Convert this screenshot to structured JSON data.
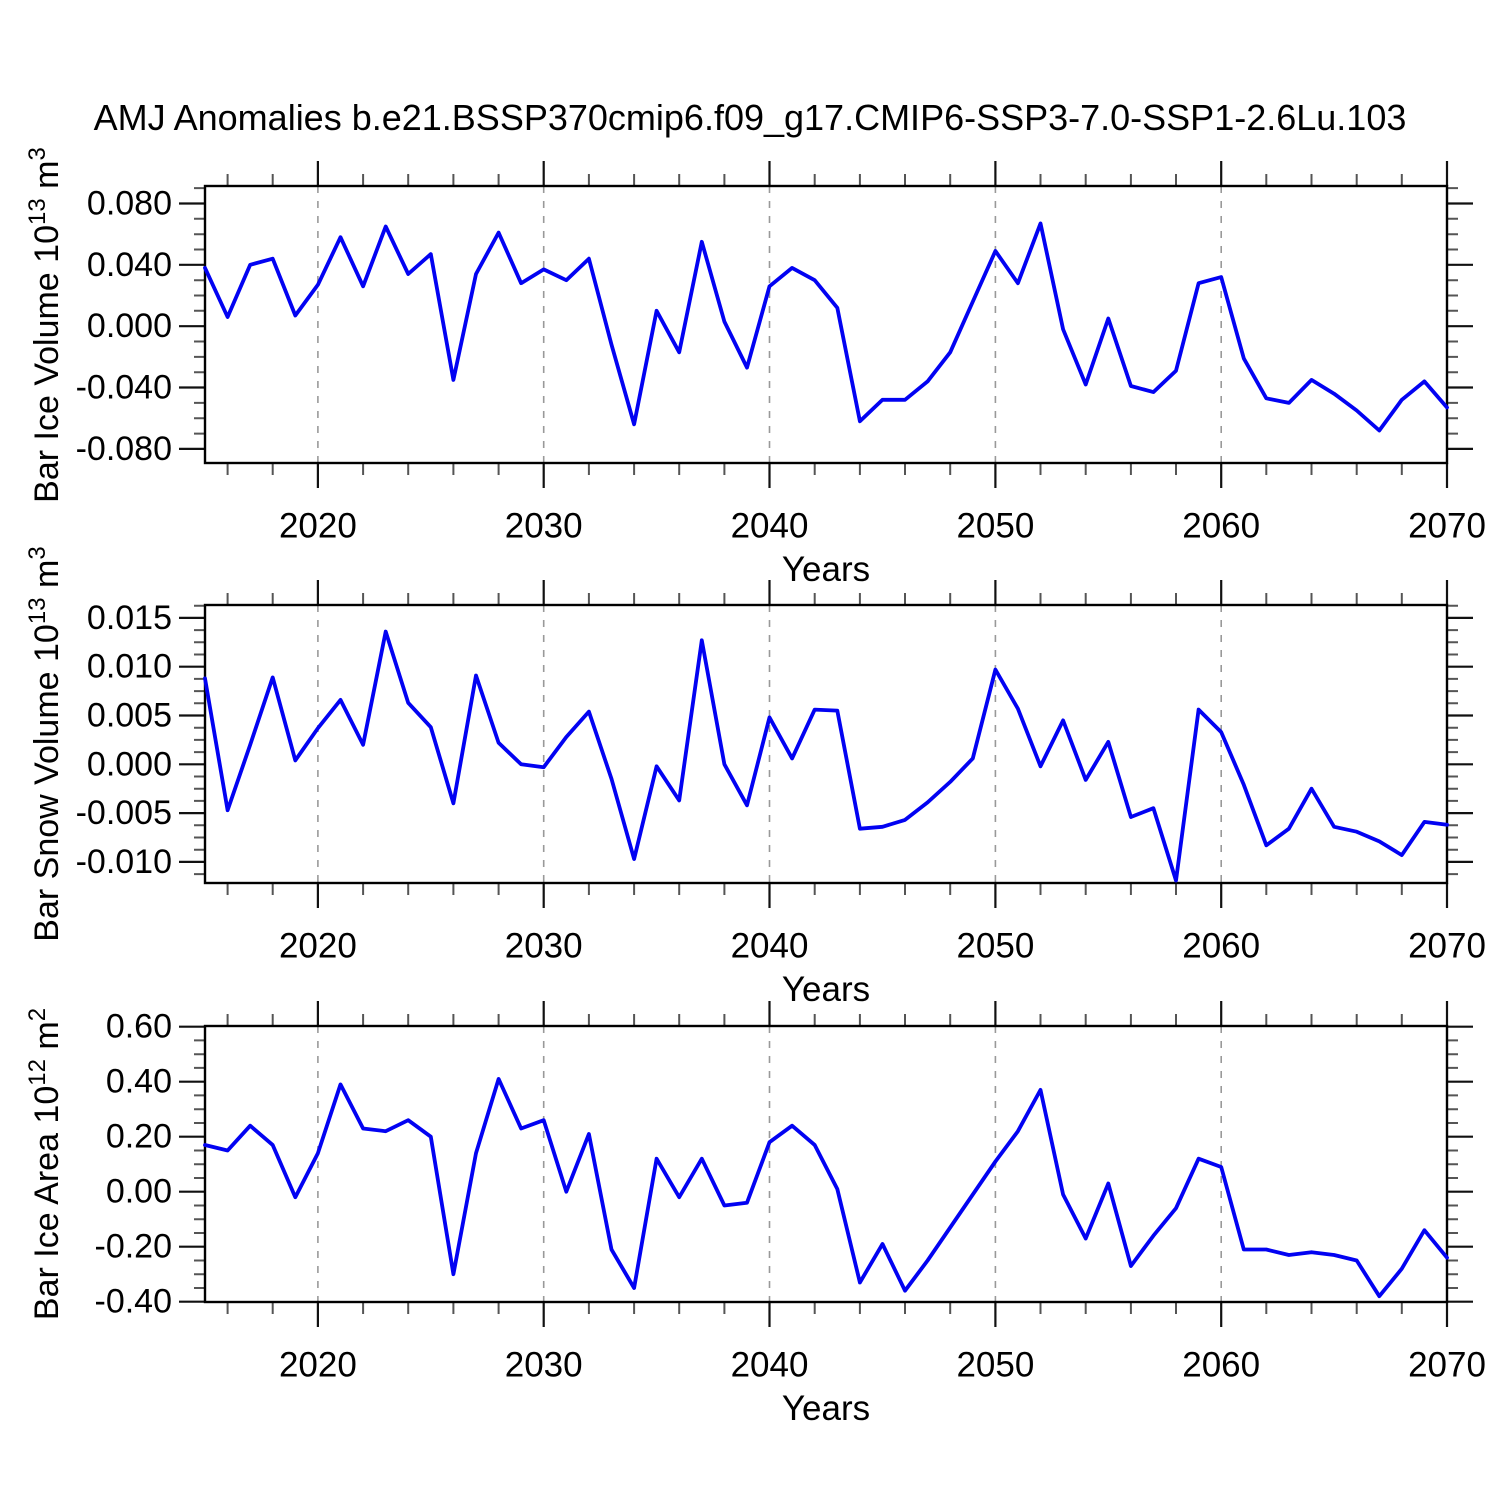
{
  "title": "AMJ Anomalies b.e21.BSSP370cmip6.f09_g17.CMIP6-SSP3-7.0-SSP1-2.6Lu.103",
  "style": {
    "line_color": "#0202f2",
    "axis_color": "#000000",
    "major_tick_color": "#111111",
    "minor_tick_color": "#555555",
    "grid_color": "#999999",
    "text_color": "#000000",
    "background": "#ffffff"
  },
  "x_axis": {
    "label": "Years",
    "start": 2015,
    "end": 2070,
    "major_ticks": [
      2020,
      2030,
      2040,
      2050,
      2060,
      2070
    ],
    "tick_labels": [
      "2020",
      "2030",
      "2040",
      "2050",
      "2060",
      "2070"
    ],
    "minor_step": 2,
    "grid_years": [
      2020,
      2030,
      2040,
      2050,
      2060
    ]
  },
  "chart_data": [
    {
      "type": "line",
      "id": "ice-volume",
      "xlabel": "Years",
      "ylabel": [
        {
          "t": "Bar Ice Volume 10"
        },
        {
          "t": "13",
          "sup": true
        },
        {
          "t": " m"
        },
        {
          "t": "3",
          "sup": true
        }
      ],
      "ylim": [
        -0.0892,
        0.0914
      ],
      "ytick_values": [
        0.08,
        0.04,
        0.0,
        -0.04,
        -0.08
      ],
      "ytick_labels": [
        "0.080",
        "0.040",
        "0.000",
        "-0.040",
        "-0.080"
      ],
      "yminor_step": 0.01,
      "x_years_start": 2015,
      "values": [
        0.038,
        0.006,
        0.04,
        0.044,
        0.007,
        0.027,
        0.058,
        0.026,
        0.065,
        0.034,
        0.047,
        -0.035,
        0.034,
        0.061,
        0.028,
        0.037,
        0.03,
        0.044,
        -0.012,
        -0.064,
        0.01,
        -0.017,
        0.055,
        0.003,
        -0.027,
        0.026,
        0.038,
        0.03,
        0.012,
        -0.062,
        -0.048,
        -0.048,
        -0.036,
        -0.017,
        0.016,
        0.049,
        0.028,
        0.067,
        -0.002,
        -0.038,
        0.005,
        -0.039,
        -0.043,
        -0.029,
        0.028,
        0.032,
        -0.021,
        -0.047,
        -0.05,
        -0.035,
        -0.044,
        -0.055,
        -0.068,
        -0.048,
        -0.036,
        -0.053
      ]
    },
    {
      "type": "line",
      "id": "snow-volume",
      "xlabel": "Years",
      "ylabel": [
        {
          "t": "Bar Snow Volume 10"
        },
        {
          "t": "13",
          "sup": true
        },
        {
          "t": " m"
        },
        {
          "t": "3",
          "sup": true
        }
      ],
      "ylim": [
        -0.01216,
        0.01632
      ],
      "ytick_values": [
        0.015,
        0.01,
        0.005,
        0.0,
        -0.005,
        -0.01
      ],
      "ytick_labels": [
        "0.015",
        "0.010",
        "0.005",
        "0.000",
        "-0.005",
        "-0.010"
      ],
      "yminor_step": 0.00125,
      "x_years_start": 2015,
      "values": [
        0.0088,
        -0.0047,
        0.002,
        0.0089,
        0.0004,
        0.0037,
        0.0066,
        0.002,
        0.0136,
        0.0063,
        0.0038,
        -0.004,
        0.0091,
        0.0022,
        0.0,
        -0.0003,
        0.0028,
        0.0054,
        -0.0015,
        -0.0097,
        -0.0002,
        -0.0037,
        0.0127,
        0.0,
        -0.0042,
        0.0048,
        0.0006,
        0.0056,
        0.0055,
        -0.0066,
        -0.0064,
        -0.0057,
        -0.0039,
        -0.0018,
        0.0006,
        0.0097,
        0.0057,
        -0.0002,
        0.0045,
        -0.0016,
        0.0023,
        -0.0054,
        -0.0045,
        -0.0119,
        0.0056,
        0.0033,
        -0.0021,
        -0.0083,
        -0.0066,
        -0.0025,
        -0.0064,
        -0.0069,
        -0.0079,
        -0.0093,
        -0.0059,
        -0.0062
      ]
    },
    {
      "type": "line",
      "id": "ice-area",
      "xlabel": "Years",
      "ylabel": [
        {
          "t": "Bar Ice Area 10"
        },
        {
          "t": "12",
          "sup": true
        },
        {
          "t": " m"
        },
        {
          "t": "2",
          "sup": true
        }
      ],
      "ylim": [
        -0.401,
        0.6025
      ],
      "ytick_values": [
        0.6,
        0.4,
        0.2,
        0.0,
        -0.2,
        -0.4
      ],
      "ytick_labels": [
        "0.60",
        "0.40",
        "0.20",
        "0.00",
        "-0.20",
        "-0.40"
      ],
      "yminor_step": 0.05,
      "x_years_start": 2015,
      "values": [
        0.17,
        0.15,
        0.24,
        0.17,
        -0.02,
        0.14,
        0.39,
        0.23,
        0.22,
        0.26,
        0.2,
        -0.3,
        0.14,
        0.41,
        0.23,
        0.26,
        0.0,
        0.21,
        -0.21,
        -0.35,
        0.12,
        -0.02,
        0.12,
        -0.05,
        -0.04,
        0.18,
        0.24,
        0.17,
        0.01,
        -0.33,
        -0.19,
        -0.36,
        -0.25,
        -0.13,
        -0.01,
        0.11,
        0.22,
        0.37,
        -0.01,
        -0.17,
        0.03,
        -0.27,
        -0.16,
        -0.06,
        0.12,
        0.09,
        -0.21,
        -0.21,
        -0.23,
        -0.22,
        -0.23,
        -0.25,
        -0.38,
        -0.28,
        -0.14,
        -0.24
      ]
    }
  ]
}
